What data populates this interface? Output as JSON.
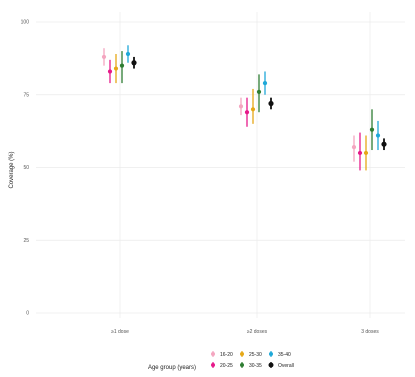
{
  "chart_data": {
    "type": "scatter",
    "subtype": "point-range (dodged error bars)",
    "categories": [
      ">1 dose",
      ">2 doses",
      "3 doses"
    ],
    "ylabel": "Coverage (%)",
    "xlabel": "",
    "ylim": [
      0,
      100
    ],
    "yticks": [
      0,
      25,
      50,
      75,
      100
    ],
    "grid": true,
    "legend": {
      "title": "Age group (years)",
      "placement": "bottom"
    },
    "series": [
      {
        "name": "16-20",
        "color": "#f4a6c0",
        "values": [
          88,
          71,
          57
        ],
        "lower": [
          85,
          68,
          52
        ],
        "upper": [
          91,
          74,
          61
        ]
      },
      {
        "name": "20-25",
        "color": "#e6198a",
        "values": [
          83,
          69,
          55
        ],
        "lower": [
          79,
          64,
          49
        ],
        "upper": [
          87,
          74,
          62
        ]
      },
      {
        "name": "25-30",
        "color": "#e6a817",
        "values": [
          84,
          70,
          55
        ],
        "lower": [
          79,
          65,
          49
        ],
        "upper": [
          89,
          77,
          61
        ]
      },
      {
        "name": "30-35",
        "color": "#2e7d32",
        "values": [
          85,
          76,
          63
        ],
        "lower": [
          79,
          69,
          56
        ],
        "upper": [
          90,
          82,
          70
        ]
      },
      {
        "name": "35-40",
        "color": "#1fa8d8",
        "values": [
          89,
          79,
          61
        ],
        "lower": [
          86,
          75,
          56
        ],
        "upper": [
          92,
          83,
          66
        ]
      },
      {
        "name": "Overall",
        "color": "#111111",
        "values": [
          86,
          72,
          58
        ],
        "lower": [
          84,
          70,
          56
        ],
        "upper": [
          88,
          74,
          60
        ]
      }
    ]
  },
  "labels": {
    "category_display": [
      "≥1 dose",
      "≥2 doses",
      "3 doses"
    ]
  }
}
